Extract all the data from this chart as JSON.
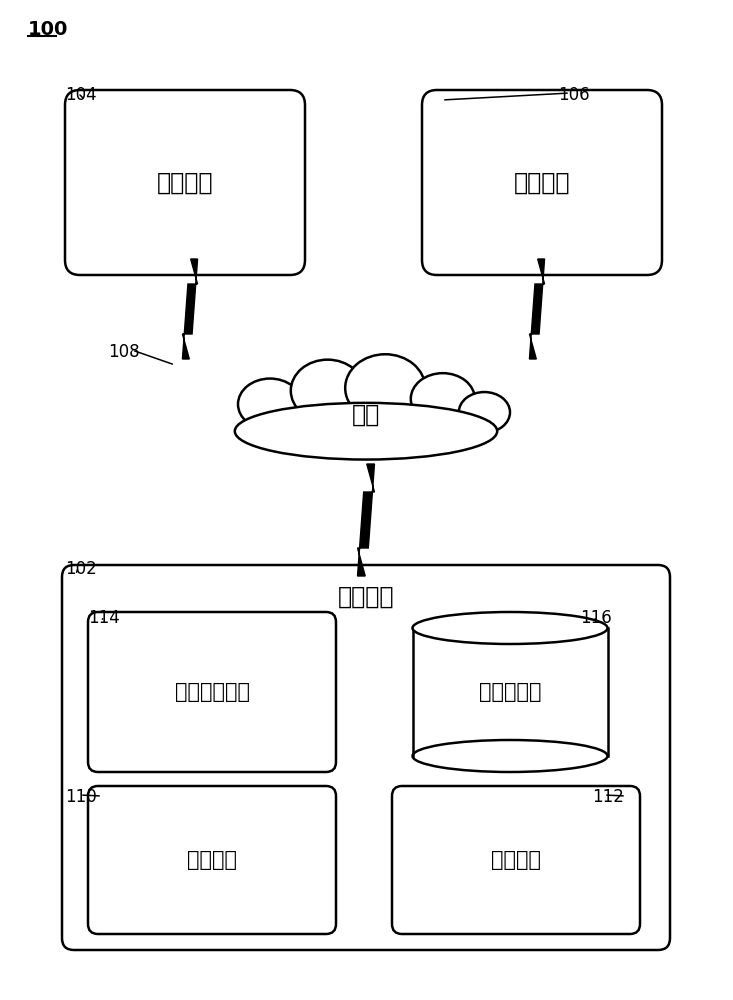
{
  "bg_color": "#ffffff",
  "label_100": "100",
  "label_104": "104",
  "label_106": "106",
  "label_108": "108",
  "label_102": "102",
  "label_114": "114",
  "label_116": "116",
  "label_110": "110",
  "label_112": "112",
  "text_attest": "证实服务",
  "text_manage": "管理服务",
  "text_network": "网络",
  "text_compute": "计算设备",
  "text_agent": "设备管理代理",
  "text_policy": "策略存储库",
  "text_boot": "引导系统",
  "text_measure": "度量系统",
  "font_size_main": 17,
  "font_size_label": 12,
  "line_color": "#000000",
  "box_color": "#ffffff"
}
